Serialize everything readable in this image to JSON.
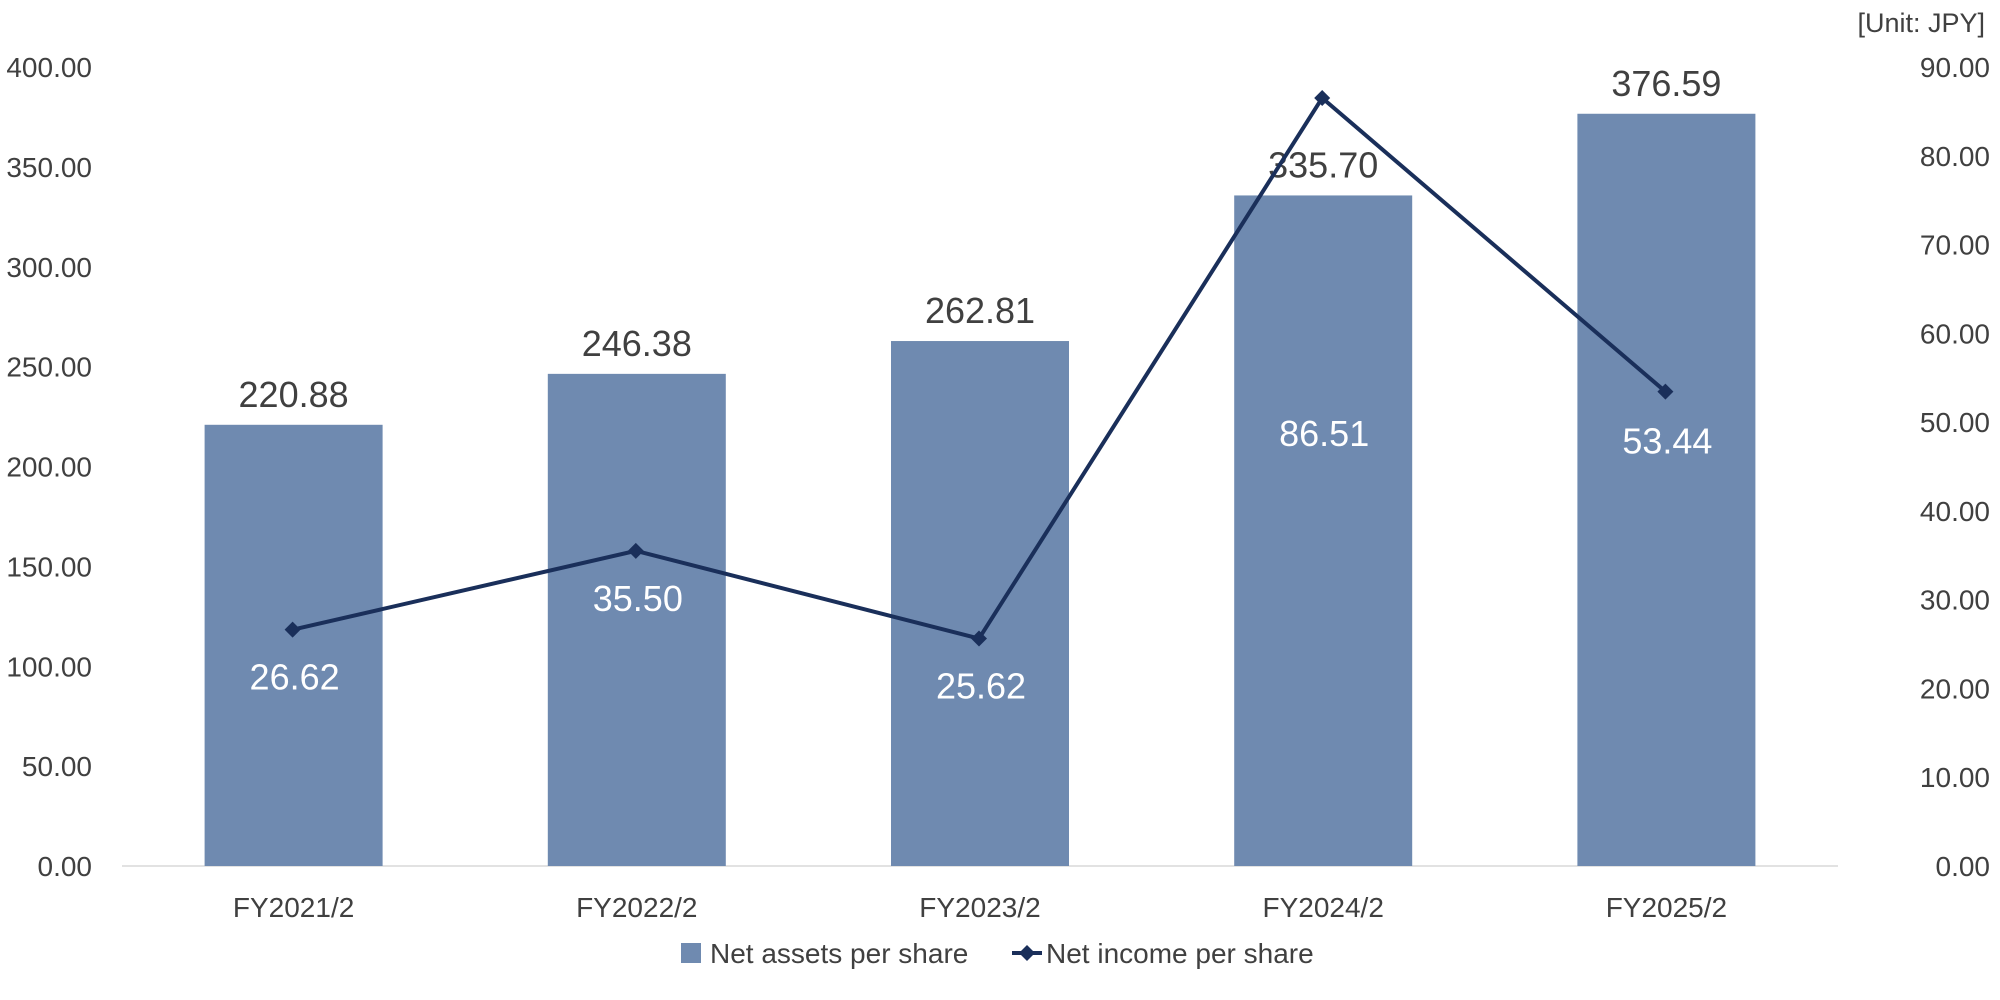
{
  "unit_label": "[Unit: JPY]",
  "colors": {
    "bar": "#6f8ab0",
    "line": "#1a2f5a",
    "axis": "#d9d9d9",
    "text": "#404040"
  },
  "chart_data": {
    "type": "bar",
    "categories": [
      "FY2021/2",
      "FY2022/2",
      "FY2023/2",
      "FY2024/2",
      "FY2025/2"
    ],
    "series": [
      {
        "name": "Net assets per share",
        "type": "bar",
        "axis": "left",
        "values": [
          220.88,
          246.38,
          262.81,
          335.7,
          376.59
        ],
        "labels": [
          "220.88",
          "246.38",
          "262.81",
          "335.70",
          "376.59"
        ]
      },
      {
        "name": "Net income per share",
        "type": "line",
        "axis": "right",
        "marker": "diamond",
        "values": [
          26.62,
          35.5,
          25.62,
          86.51,
          53.44
        ],
        "labels": [
          "26.62",
          "35.50",
          "25.62",
          "86.51",
          "53.44"
        ]
      }
    ],
    "ylim_left": [
      0,
      400
    ],
    "ylim_right": [
      0,
      90
    ],
    "left_ticks": [
      "0.00",
      "50.00",
      "100.00",
      "150.00",
      "200.00",
      "250.00",
      "300.00",
      "350.00",
      "400.00"
    ],
    "right_ticks": [
      "0.00",
      "10.00",
      "20.00",
      "30.00",
      "40.00",
      "50.00",
      "60.00",
      "70.00",
      "80.00",
      "90.00"
    ],
    "grid": false,
    "legend_position": "bottom"
  }
}
